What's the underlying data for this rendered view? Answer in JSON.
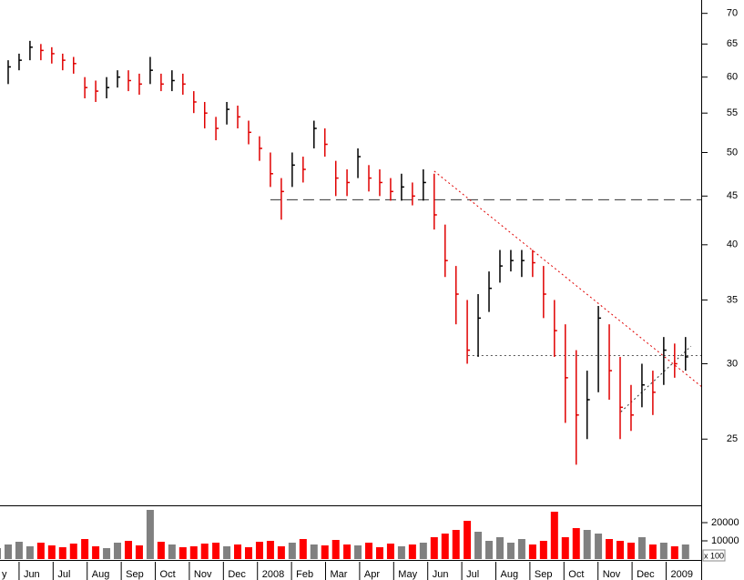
{
  "chart_data": [
    {
      "type": "ohlc",
      "log_scale": true,
      "x": [
        -0.64,
        -0.32,
        0.0,
        0.32,
        0.64,
        0.96,
        1.28,
        1.6,
        1.93,
        2.25,
        2.57,
        2.89,
        3.21,
        3.53,
        3.85,
        4.17,
        4.49,
        4.81,
        5.13,
        5.45,
        5.78,
        6.1,
        6.42,
        6.74,
        7.06,
        7.38,
        7.7,
        8.02,
        8.34,
        8.66,
        8.98,
        9.3,
        9.63,
        9.95,
        10.27,
        10.59,
        10.91,
        11.23,
        11.55,
        11.87,
        12.19,
        12.51,
        12.83,
        13.16,
        13.48,
        13.8,
        14.12,
        14.44,
        14.76,
        15.08,
        15.4,
        15.72,
        16.04,
        16.36,
        16.68,
        17.01,
        17.33,
        17.65,
        17.97,
        18.29,
        18.61,
        18.93,
        19.25,
        19.57
      ],
      "high": [
        60.5,
        62.5,
        63.5,
        65.5,
        65,
        64.5,
        63.5,
        63,
        60,
        59.5,
        60,
        61,
        61,
        60.5,
        63,
        60.5,
        61,
        60.5,
        58,
        56.5,
        54.5,
        56.5,
        56,
        54,
        52,
        50,
        47,
        50,
        49.5,
        54,
        53,
        49,
        48,
        50.5,
        48.5,
        48,
        47,
        47.5,
        46.5,
        48,
        47.5,
        42,
        38,
        35,
        35.5,
        37.5,
        39.5,
        39.5,
        39.5,
        39.5,
        38,
        35,
        33,
        31,
        29.5,
        34.5,
        33,
        30.5,
        28.5,
        30,
        29.5,
        32,
        31.5,
        32
      ],
      "low": [
        58,
        59,
        61,
        62.5,
        62.5,
        62,
        61,
        60.5,
        57,
        56.5,
        57,
        58.5,
        58,
        57.5,
        59,
        58,
        58,
        57.5,
        55,
        53,
        51.5,
        53.5,
        53,
        51,
        49,
        46,
        42.5,
        46,
        46.5,
        50.5,
        49.5,
        45,
        45,
        47,
        45.5,
        45,
        44.5,
        44.5,
        44,
        44.5,
        41.5,
        37,
        33,
        30,
        30.5,
        34,
        36.5,
        37.5,
        37,
        37,
        33.5,
        30.5,
        26,
        23.5,
        25,
        28,
        27.5,
        25,
        25.5,
        27,
        26.5,
        28.5,
        29,
        29.5
      ],
      "close": [
        59,
        61.5,
        62.5,
        64.5,
        64,
        63.5,
        62.5,
        62,
        58.5,
        58,
        58.5,
        60,
        59.5,
        59,
        61,
        59,
        59.5,
        59,
        56.5,
        55,
        53,
        55.5,
        54.5,
        52.5,
        50.5,
        47.5,
        45.5,
        48.5,
        48,
        53,
        51,
        47,
        46.5,
        49.5,
        47,
        46.5,
        45.5,
        46,
        45,
        46.5,
        43,
        38.5,
        35.5,
        31,
        33.5,
        36,
        38,
        38.5,
        38.5,
        38.3,
        35.5,
        32.5,
        29,
        26.5,
        27.5,
        33.5,
        29.5,
        27,
        26.5,
        28.5,
        28,
        31,
        30,
        30.5
      ],
      "up_color": "#000000",
      "down_color": "#e00000",
      "xlim": [
        -0.56,
        20.03
      ],
      "xticks": [
        {
          "value": -1,
          "label": "y"
        },
        {
          "value": 0,
          "label": "Jun"
        },
        {
          "value": 1,
          "label": "Jul"
        },
        {
          "value": 2,
          "label": "Aug"
        },
        {
          "value": 3,
          "label": "Sep"
        },
        {
          "value": 4,
          "label": "Oct"
        },
        {
          "value": 5,
          "label": "Nov"
        },
        {
          "value": 6,
          "label": "Dec"
        },
        {
          "value": 7,
          "label": "2008"
        },
        {
          "value": 8,
          "label": "Feb"
        },
        {
          "value": 9,
          "label": "Mar"
        },
        {
          "value": 10,
          "label": "Apr"
        },
        {
          "value": 11,
          "label": "May"
        },
        {
          "value": 12,
          "label": "Jun"
        },
        {
          "value": 13,
          "label": "Jul"
        },
        {
          "value": 14,
          "label": "Aug"
        },
        {
          "value": 15,
          "label": "Sep"
        },
        {
          "value": 16,
          "label": "Oct"
        },
        {
          "value": 17,
          "label": "Nov"
        },
        {
          "value": 18,
          "label": "Dec"
        },
        {
          "value": 19,
          "label": "2009"
        }
      ],
      "ylim": [
        21.3,
        72.3
      ],
      "yticks": [
        25,
        30,
        35,
        40,
        45,
        50,
        55,
        60,
        65,
        70
      ],
      "lines": [
        {
          "x": [
            7.38,
            20.03
          ],
          "y": [
            44.6,
            44.6
          ],
          "color": "#333333",
          "style": "dashed"
        },
        {
          "x": [
            13.18,
            20.03
          ],
          "y": [
            30.6,
            30.6
          ],
          "color": "#555555",
          "style": "dotted"
        },
        {
          "x": [
            12.19,
            20.03
          ],
          "y": [
            47.8,
            28.4
          ],
          "color": "#e00000",
          "style": "dotted"
        },
        {
          "x": [
            17.67,
            19.73
          ],
          "y": [
            26.7,
            31.3
          ],
          "color": "#333333",
          "style": "dotted"
        }
      ]
    },
    {
      "type": "bar",
      "label": "x 100",
      "values": [
        6000,
        8000,
        9500,
        7000,
        9000,
        7500,
        6500,
        8500,
        11000,
        7000,
        6000,
        9000,
        10000,
        7500,
        27000,
        9500,
        8000,
        6500,
        7000,
        8500,
        9000,
        7000,
        8000,
        6500,
        9500,
        10000,
        7000,
        9000,
        11000,
        8000,
        7500,
        10500,
        8000,
        7500,
        9000,
        6500,
        8500,
        7000,
        8000,
        9000,
        12000,
        14000,
        16000,
        21000,
        15000,
        10000,
        12000,
        9000,
        11000,
        8000,
        10000,
        26000,
        12000,
        17000,
        16000,
        14000,
        11000,
        10000,
        9000,
        12000,
        8000,
        9000,
        7000,
        8000
      ],
      "up_color": "#808080",
      "down_color": "#ff0000",
      "ylim": [
        0,
        29500
      ],
      "yticks": [
        10000,
        20000
      ]
    }
  ]
}
